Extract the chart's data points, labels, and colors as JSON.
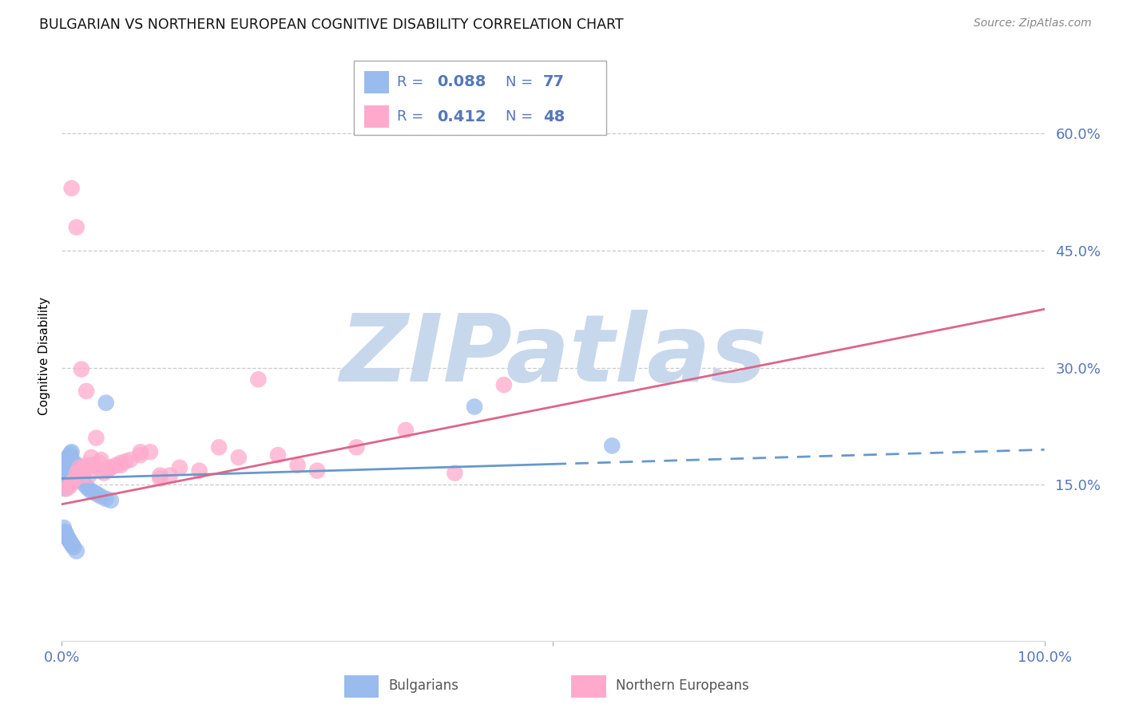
{
  "title": "BULGARIAN VS NORTHERN EUROPEAN COGNITIVE DISABILITY CORRELATION CHART",
  "source": "Source: ZipAtlas.com",
  "ylabel": "Cognitive Disability",
  "ytick_values": [
    0.15,
    0.3,
    0.45,
    0.6
  ],
  "ytick_labels": [
    "15.0%",
    "30.0%",
    "45.0%",
    "60.0%"
  ],
  "xlim": [
    0.0,
    1.0
  ],
  "ylim": [
    -0.05,
    0.68
  ],
  "blue_R": "0.088",
  "blue_N": "77",
  "pink_R": "0.412",
  "pink_N": "48",
  "blue_color": "#6699CC",
  "blue_scatter": "#99BBEE",
  "pink_color": "#DD6688",
  "pink_scatter": "#FFAACC",
  "bg_color": "#FFFFFF",
  "grid_color": "#CCCCCC",
  "tick_color": "#5577BB",
  "legend_text_color": "#5577BB",
  "watermark_color": "#C8D8EC",
  "blue_label": "Bulgarians",
  "pink_label": "Northern Europeans",
  "blue_line_solid_end": 0.5,
  "blue_line_start_y": 0.158,
  "blue_line_end_y": 0.195,
  "pink_line_start_y": 0.125,
  "pink_line_end_y": 0.375,
  "blue_x": [
    0.001,
    0.001,
    0.001,
    0.002,
    0.002,
    0.002,
    0.002,
    0.003,
    0.003,
    0.003,
    0.003,
    0.003,
    0.004,
    0.004,
    0.004,
    0.004,
    0.005,
    0.005,
    0.005,
    0.005,
    0.006,
    0.006,
    0.006,
    0.006,
    0.007,
    0.007,
    0.007,
    0.008,
    0.008,
    0.008,
    0.009,
    0.009,
    0.009,
    0.01,
    0.01,
    0.01,
    0.011,
    0.011,
    0.012,
    0.012,
    0.013,
    0.013,
    0.014,
    0.014,
    0.015,
    0.015,
    0.016,
    0.017,
    0.018,
    0.019,
    0.02,
    0.021,
    0.022,
    0.023,
    0.025,
    0.027,
    0.03,
    0.033,
    0.036,
    0.04,
    0.045,
    0.05,
    0.002,
    0.003,
    0.004,
    0.005,
    0.006,
    0.007,
    0.008,
    0.009,
    0.01,
    0.011,
    0.012,
    0.015,
    0.42,
    0.56,
    0.045
  ],
  "blue_y": [
    0.175,
    0.165,
    0.155,
    0.175,
    0.168,
    0.16,
    0.15,
    0.178,
    0.17,
    0.162,
    0.154,
    0.145,
    0.18,
    0.172,
    0.164,
    0.156,
    0.182,
    0.174,
    0.166,
    0.158,
    0.184,
    0.176,
    0.168,
    0.16,
    0.186,
    0.178,
    0.17,
    0.188,
    0.18,
    0.172,
    0.19,
    0.182,
    0.174,
    0.192,
    0.184,
    0.176,
    0.168,
    0.16,
    0.17,
    0.162,
    0.172,
    0.164,
    0.174,
    0.166,
    0.176,
    0.168,
    0.165,
    0.163,
    0.161,
    0.159,
    0.168,
    0.155,
    0.163,
    0.151,
    0.148,
    0.145,
    0.142,
    0.14,
    0.138,
    0.135,
    0.132,
    0.13,
    0.095,
    0.09,
    0.088,
    0.085,
    0.082,
    0.08,
    0.078,
    0.076,
    0.074,
    0.072,
    0.07,
    0.065,
    0.25,
    0.2,
    0.255
  ],
  "pink_x": [
    0.005,
    0.008,
    0.01,
    0.012,
    0.015,
    0.018,
    0.02,
    0.022,
    0.025,
    0.028,
    0.03,
    0.032,
    0.035,
    0.038,
    0.04,
    0.043,
    0.046,
    0.05,
    0.055,
    0.06,
    0.065,
    0.07,
    0.08,
    0.09,
    0.1,
    0.11,
    0.12,
    0.14,
    0.16,
    0.18,
    0.2,
    0.22,
    0.24,
    0.26,
    0.3,
    0.35,
    0.4,
    0.45,
    0.01,
    0.015,
    0.02,
    0.025,
    0.03,
    0.04,
    0.05,
    0.06,
    0.08,
    0.1
  ],
  "pink_y": [
    0.145,
    0.148,
    0.152,
    0.155,
    0.165,
    0.172,
    0.162,
    0.17,
    0.175,
    0.162,
    0.185,
    0.175,
    0.21,
    0.178,
    0.182,
    0.165,
    0.168,
    0.172,
    0.175,
    0.178,
    0.18,
    0.182,
    0.188,
    0.192,
    0.158,
    0.162,
    0.172,
    0.168,
    0.198,
    0.185,
    0.285,
    0.188,
    0.175,
    0.168,
    0.198,
    0.22,
    0.165,
    0.278,
    0.53,
    0.48,
    0.298,
    0.27,
    0.175,
    0.168,
    0.172,
    0.175,
    0.192,
    0.162
  ]
}
